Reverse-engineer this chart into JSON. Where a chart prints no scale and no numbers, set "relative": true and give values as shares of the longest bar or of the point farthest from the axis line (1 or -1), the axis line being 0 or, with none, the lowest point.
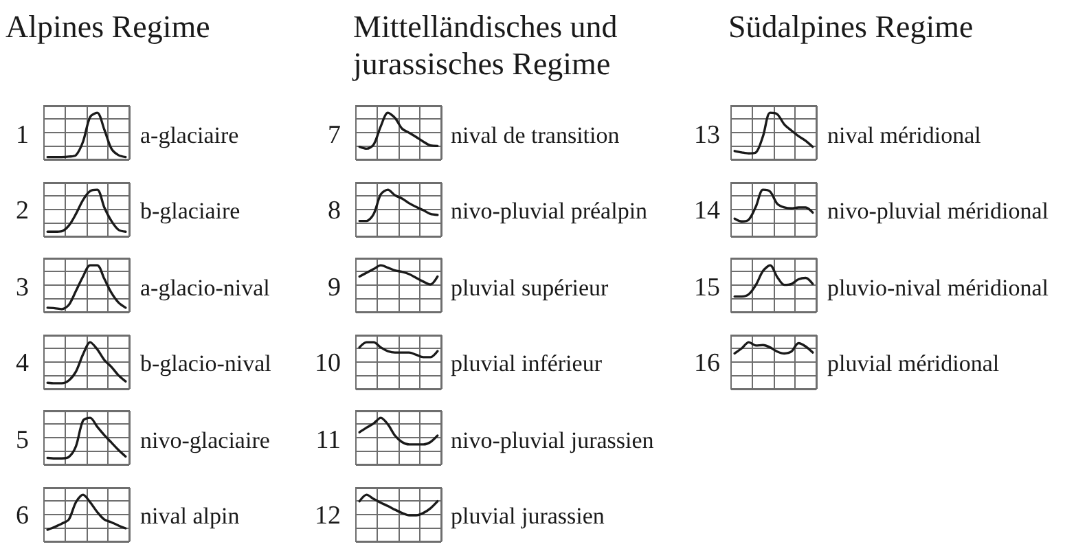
{
  "chart_data": [
    {
      "type": "other",
      "title": "Alpines Regime"
    },
    {
      "type": "line",
      "title": "a-glaciaire",
      "annotations": [
        "1"
      ],
      "categories": [
        null,
        null,
        null,
        null,
        null,
        null,
        null,
        null,
        null,
        null,
        null,
        null
      ],
      "values": [
        0.05,
        0.05,
        0.05,
        0.06,
        0.09,
        0.38,
        0.91,
        1,
        0.64,
        0.23,
        0.09,
        0.05
      ],
      "color": "#1a1a1a",
      "relative": true,
      "grid": true
    },
    {
      "type": "line",
      "title": "b-glaciaire",
      "annotations": [
        "2"
      ],
      "categories": [
        null,
        null,
        null,
        null,
        null,
        null,
        null,
        null,
        null,
        null,
        null,
        null
      ],
      "values": [
        0.1,
        0.1,
        0.11,
        0.23,
        0.48,
        0.78,
        0.97,
        1,
        0.62,
        0.33,
        0.14,
        0.1
      ],
      "color": "#1a1a1a",
      "relative": true,
      "grid": true
    },
    {
      "type": "line",
      "title": "a-glacio-nival",
      "annotations": [
        "3"
      ],
      "categories": [
        null,
        null,
        null,
        null,
        null,
        null,
        null,
        null,
        null,
        null,
        null,
        null
      ],
      "values": [
        0.09,
        0.08,
        0.06,
        0.15,
        0.45,
        0.76,
        1,
        1,
        0.71,
        0.41,
        0.2,
        0.09
      ],
      "color": "#1a1a1a",
      "relative": true,
      "grid": true
    },
    {
      "type": "line",
      "title": "b-glacio-nival",
      "annotations": [
        "4"
      ],
      "categories": [
        null,
        null,
        null,
        null,
        null,
        null,
        null,
        null,
        null,
        null,
        null,
        null
      ],
      "values": [
        0.13,
        0.12,
        0.12,
        0.18,
        0.37,
        0.74,
        1,
        0.85,
        0.62,
        0.47,
        0.29,
        0.16
      ],
      "color": "#1a1a1a",
      "relative": true,
      "grid": true
    },
    {
      "type": "line",
      "title": "nivo-glaciaire",
      "annotations": [
        "5"
      ],
      "categories": [
        null,
        null,
        null,
        null,
        null,
        null,
        null,
        null,
        null,
        null,
        null,
        null
      ],
      "values": [
        0.14,
        0.13,
        0.13,
        0.16,
        0.39,
        0.94,
        1,
        0.81,
        0.63,
        0.47,
        0.31,
        0.17
      ],
      "color": "#1a1a1a",
      "relative": true,
      "grid": true
    },
    {
      "type": "line",
      "title": "nival alpin",
      "annotations": [
        "6"
      ],
      "categories": [
        null,
        null,
        null,
        null,
        null,
        null,
        null,
        null,
        null,
        null,
        null,
        null
      ],
      "values": [
        0.25,
        0.31,
        0.38,
        0.47,
        0.84,
        1,
        0.84,
        0.63,
        0.47,
        0.41,
        0.34,
        0.28
      ],
      "color": "#1a1a1a",
      "relative": true,
      "grid": true
    },
    {
      "type": "other",
      "title": "Mittelländisches und jurassisches Regime"
    },
    {
      "type": "line",
      "title": "nival de transition",
      "annotations": [
        "7"
      ],
      "categories": [
        null,
        null,
        null,
        null,
        null,
        null,
        null,
        null,
        null,
        null,
        null,
        null
      ],
      "values": [
        0.27,
        0.23,
        0.32,
        0.71,
        1,
        0.89,
        0.66,
        0.57,
        0.48,
        0.38,
        0.3,
        0.29
      ],
      "color": "#1a1a1a",
      "relative": true,
      "grid": true
    },
    {
      "type": "line",
      "title": "nivo-pluvial préalpin",
      "annotations": [
        "8"
      ],
      "categories": [
        null,
        null,
        null,
        null,
        null,
        null,
        null,
        null,
        null,
        null,
        null,
        null
      ],
      "values": [
        0.33,
        0.33,
        0.48,
        0.9,
        1,
        0.88,
        0.81,
        0.71,
        0.63,
        0.56,
        0.48,
        0.46
      ],
      "color": "#1a1a1a",
      "relative": true,
      "grid": true
    },
    {
      "type": "line",
      "title": "pluvial supérieur",
      "annotations": [
        "9"
      ],
      "categories": [
        null,
        null,
        null,
        null,
        null,
        null,
        null,
        null,
        null,
        null,
        null,
        null
      ],
      "values": [
        0.76,
        0.84,
        0.92,
        1,
        0.95,
        0.89,
        0.86,
        0.81,
        0.73,
        0.65,
        0.59,
        0.76
      ],
      "color": "#1a1a1a",
      "relative": true,
      "grid": true
    },
    {
      "type": "line",
      "title": "pluvial inférieur",
      "annotations": [
        "10"
      ],
      "categories": [
        null,
        null,
        null,
        null,
        null,
        null,
        null,
        null,
        null,
        null,
        null,
        null
      ],
      "values": [
        0.89,
        1,
        1,
        0.89,
        0.81,
        0.78,
        0.78,
        0.78,
        0.73,
        0.68,
        0.68,
        0.81
      ],
      "color": "#1a1a1a",
      "relative": true,
      "grid": true
    },
    {
      "type": "line",
      "title": "nivo-pluvial jurassien",
      "annotations": [
        "11"
      ],
      "categories": [
        null,
        null,
        null,
        null,
        null,
        null,
        null,
        null,
        null,
        null,
        null,
        null
      ],
      "values": [
        0.69,
        0.79,
        0.88,
        1,
        0.86,
        0.62,
        0.48,
        0.43,
        0.43,
        0.43,
        0.48,
        0.62
      ],
      "color": "#1a1a1a",
      "relative": true,
      "grid": true
    },
    {
      "type": "line",
      "title": "pluvial jurassien",
      "annotations": [
        "12"
      ],
      "categories": [
        null,
        null,
        null,
        null,
        null,
        null,
        null,
        null,
        null,
        null,
        null,
        null
      ],
      "values": [
        0.86,
        1,
        0.91,
        0.83,
        0.76,
        0.68,
        0.61,
        0.56,
        0.56,
        0.61,
        0.71,
        0.86
      ],
      "color": "#1a1a1a",
      "relative": true,
      "grid": true
    },
    {
      "type": "other",
      "title": "Südalpines Regime"
    },
    {
      "type": "line",
      "title": "nival méridional",
      "annotations": [
        "13"
      ],
      "categories": [
        null,
        null,
        null,
        null,
        null,
        null,
        null,
        null,
        null,
        null,
        null,
        null
      ],
      "values": [
        0.18,
        0.15,
        0.13,
        0.15,
        0.5,
        1,
        0.97,
        0.75,
        0.62,
        0.5,
        0.4,
        0.27
      ],
      "color": "#1a1a1a",
      "relative": true,
      "grid": true
    },
    {
      "type": "line",
      "title": "nivo-pluvial méridional",
      "annotations": [
        "14"
      ],
      "categories": [
        null,
        null,
        null,
        null,
        null,
        null,
        null,
        null,
        null,
        null,
        null,
        null
      ],
      "values": [
        0.38,
        0.32,
        0.36,
        0.64,
        1,
        0.96,
        0.7,
        0.62,
        0.6,
        0.62,
        0.62,
        0.51
      ],
      "color": "#1a1a1a",
      "relative": true,
      "grid": true
    },
    {
      "type": "line",
      "title": "pluvio-nival méridional",
      "annotations": [
        "15"
      ],
      "categories": [
        null,
        null,
        null,
        null,
        null,
        null,
        null,
        null,
        null,
        null,
        null,
        null
      ],
      "values": [
        0.33,
        0.33,
        0.38,
        0.58,
        0.88,
        1,
        0.75,
        0.58,
        0.6,
        0.7,
        0.73,
        0.6
      ],
      "color": "#1a1a1a",
      "relative": true,
      "grid": true
    },
    {
      "type": "line",
      "title": "pluvial méridional",
      "annotations": [
        "16"
      ],
      "categories": [
        null,
        null,
        null,
        null,
        null,
        null,
        null,
        null,
        null,
        null,
        null,
        null
      ],
      "values": [
        0.76,
        0.87,
        1,
        0.93,
        0.94,
        0.89,
        0.8,
        0.76,
        0.8,
        0.98,
        0.91,
        0.78
      ],
      "color": "#1a1a1a",
      "relative": true,
      "grid": true
    }
  ]
}
